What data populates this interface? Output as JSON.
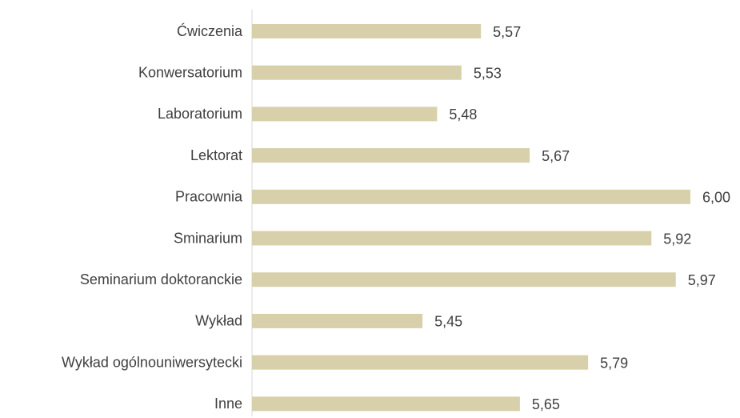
{
  "chart_data": {
    "type": "bar",
    "orientation": "horizontal",
    "categories": [
      "Ćwiczenia",
      "Konwersatorium",
      "Laboratorium",
      "Lektorat",
      "Pracownia",
      "Sminarium",
      "Seminarium doktoranckie",
      "Wykład",
      "Wykład ogólnouniwersytecki",
      "Inne"
    ],
    "values": [
      5.57,
      5.53,
      5.48,
      5.67,
      6.0,
      5.92,
      5.97,
      5.45,
      5.79,
      5.65
    ],
    "value_labels": [
      "5,57",
      "5,53",
      "5,48",
      "5,67",
      "6,00",
      "5,92",
      "5,97",
      "5,45",
      "5,79",
      "5,65"
    ],
    "color": "#d7d0aa",
    "xlim": [
      5.1,
      6.0
    ]
  }
}
